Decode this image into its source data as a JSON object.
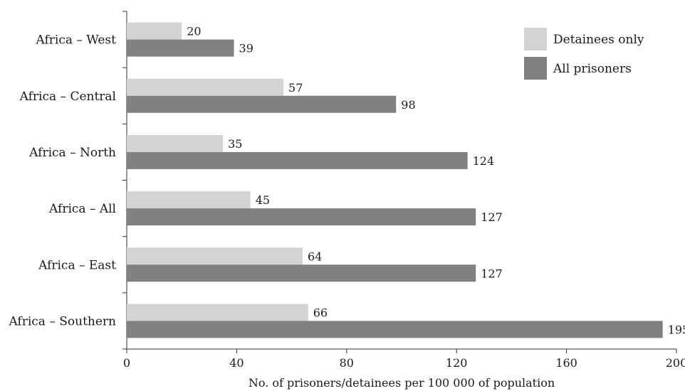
{
  "chart_data": {
    "type": "bar",
    "orientation": "horizontal",
    "categories": [
      "Africa – West",
      "Africa – Central",
      "Africa – North",
      "Africa – All",
      "Africa – East",
      "Africa – Southern"
    ],
    "series": [
      {
        "name": "Detainees only",
        "values": [
          20,
          57,
          35,
          45,
          64,
          66
        ],
        "color": "#d2d3d5"
      },
      {
        "name": "All prisoners",
        "values": [
          39,
          98,
          124,
          127,
          127,
          195
        ],
        "color": "#808083"
      }
    ],
    "xlabel": "No. of prisoners/detainees per 100 000 of population",
    "ylabel": "",
    "xlim": [
      0,
      200
    ],
    "xticks": [
      0,
      40,
      80,
      120,
      160,
      200
    ],
    "grid": false,
    "legend_position": "top-right"
  }
}
